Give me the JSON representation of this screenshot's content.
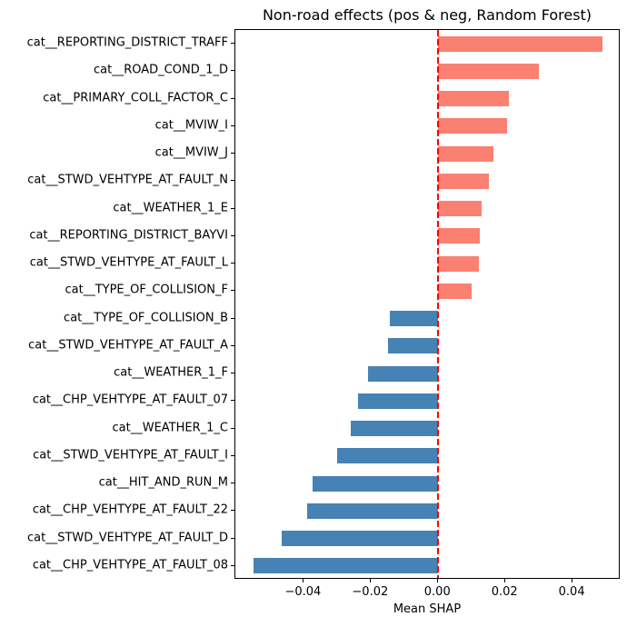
{
  "chart_data": {
    "type": "bar",
    "orientation": "horizontal",
    "title": "Non-road effects (pos & neg, Random Forest)",
    "xlabel": "Mean SHAP",
    "ylabel": "",
    "categories": [
      "cat__REPORTING_DISTRICT_TRAFF",
      "cat__ROAD_COND_1_D",
      "cat__PRIMARY_COLL_FACTOR_C",
      "cat__MVIW_I",
      "cat__MVIW_J",
      "cat__STWD_VEHTYPE_AT_FAULT_N",
      "cat__WEATHER_1_E",
      "cat__REPORTING_DISTRICT_BAYVI",
      "cat__STWD_VEHTYPE_AT_FAULT_L",
      "cat__TYPE_OF_COLLISION_F",
      "cat__TYPE_OF_COLLISION_B",
      "cat__STWD_VEHTYPE_AT_FAULT_A",
      "cat__WEATHER_1_F",
      "cat__CHP_VEHTYPE_AT_FAULT_07",
      "cat__WEATHER_1_C",
      "cat__STWD_VEHTYPE_AT_FAULT_I",
      "cat__HIT_AND_RUN_M",
      "cat__CHP_VEHTYPE_AT_FAULT_22",
      "cat__STWD_VEHTYPE_AT_FAULT_D",
      "cat__CHP_VEHTYPE_AT_FAULT_08"
    ],
    "values": [
      0.049,
      0.03,
      0.021,
      0.0205,
      0.0165,
      0.015,
      0.013,
      0.0125,
      0.012,
      0.01,
      -0.0145,
      -0.015,
      -0.021,
      -0.024,
      -0.026,
      -0.03,
      -0.0375,
      -0.039,
      -0.0465,
      -0.055
    ],
    "xlim": [
      -0.0604,
      0.0543
    ],
    "xticks": [
      -0.04,
      -0.02,
      0.0,
      0.02,
      0.04
    ],
    "xtick_labels": [
      "−0.04",
      "−0.02",
      "0.00",
      "0.02",
      "0.04"
    ],
    "positive_color": "#fa8072",
    "negative_color": "#4682b4",
    "zero_line_color": "#ff0000",
    "axis_color": "#000000",
    "background_color": "#ffffff",
    "grid": false,
    "legend": "none"
  }
}
